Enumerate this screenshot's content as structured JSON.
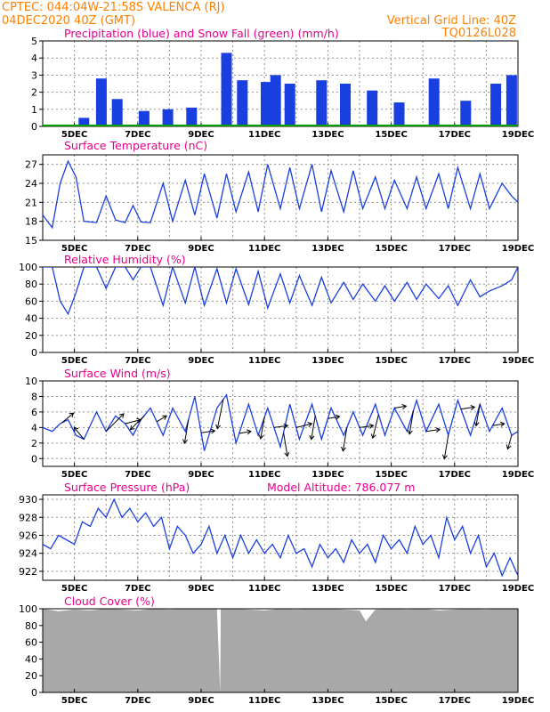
{
  "header": {
    "line1": "CPTEC:   044:04W-21:58S   VALENCA (RJ)",
    "line2": "04DEC2020  40Z  (GMT)",
    "grid_note": "Vertical Grid Line: 40Z",
    "code": "TQ0126L028"
  },
  "colors": {
    "header": "#ff8000",
    "title": "#e8008a",
    "line": "#1a3fe0",
    "precip": "#1a3fe0",
    "snow": "#00a000",
    "cloud": "#a8a8a8",
    "grid": "#909090"
  },
  "chart_data": [
    {
      "type": "bar",
      "title": "Precipitation (blue) and Snow Fall (green) (mm/h)",
      "x_labels": [
        "5DEC",
        "7DEC",
        "9DEC",
        "11DEC",
        "13DEC",
        "15DEC",
        "17DEC",
        "19DEC"
      ],
      "x_range_days": [
        4.0,
        19.0
      ],
      "ylim": [
        0,
        5
      ],
      "yticks": [
        0,
        1,
        2,
        3,
        4,
        5
      ],
      "grid": true,
      "series": [
        {
          "name": "Precipitation",
          "x": [
            5.3,
            5.85,
            6.35,
            7.2,
            7.95,
            8.7,
            9.8,
            10.3,
            11.05,
            11.35,
            11.8,
            12.8,
            13.55,
            14.4,
            15.25,
            16.35,
            17.35,
            18.3,
            18.8
          ],
          "values": [
            0.5,
            2.8,
            1.6,
            0.9,
            1.0,
            1.1,
            4.3,
            2.7,
            2.6,
            3.0,
            2.5,
            2.7,
            2.5,
            2.1,
            1.4,
            2.8,
            1.5,
            2.5,
            3.0
          ]
        },
        {
          "name": "Snow Fall",
          "x": [
            4.0,
            19.0
          ],
          "values": [
            0,
            0
          ]
        }
      ]
    },
    {
      "type": "line",
      "title": "Surface Temperature (nC)",
      "x_labels": [
        "5DEC",
        "7DEC",
        "9DEC",
        "11DEC",
        "13DEC",
        "15DEC",
        "17DEC",
        "19DEC"
      ],
      "x_range_days": [
        4.0,
        19.0
      ],
      "ylim": [
        15,
        28.5
      ],
      "yticks": [
        15,
        18,
        21,
        24,
        27
      ],
      "grid": true,
      "series": [
        {
          "name": "",
          "x": [
            4.0,
            4.3,
            4.55,
            4.8,
            5.05,
            5.3,
            5.7,
            6.0,
            6.3,
            6.6,
            6.85,
            7.1,
            7.4,
            7.8,
            8.1,
            8.5,
            8.8,
            9.1,
            9.5,
            9.8,
            10.1,
            10.5,
            10.8,
            11.1,
            11.5,
            11.8,
            12.1,
            12.5,
            12.8,
            13.1,
            13.5,
            13.8,
            14.1,
            14.5,
            14.8,
            15.1,
            15.5,
            15.8,
            16.1,
            16.5,
            16.8,
            17.1,
            17.5,
            17.8,
            18.1,
            18.5,
            18.8,
            19.0
          ],
          "values": [
            19,
            17,
            24,
            27.5,
            25,
            18,
            17.8,
            22,
            18.2,
            17.8,
            20.5,
            17.9,
            17.8,
            24,
            18,
            24.5,
            19,
            25.5,
            18.5,
            25.5,
            19.5,
            25.8,
            19.5,
            27,
            20,
            26.5,
            20,
            27,
            19.5,
            26,
            19.5,
            26,
            20,
            25,
            20,
            24.5,
            20,
            25,
            20,
            25.5,
            20,
            26.5,
            20,
            25.5,
            20,
            24,
            22,
            21
          ]
        }
      ]
    },
    {
      "type": "line",
      "title": "Relative Humidity (%)",
      "x_labels": [
        "5DEC",
        "7DEC",
        "9DEC",
        "11DEC",
        "13DEC",
        "15DEC",
        "17DEC",
        "19DEC"
      ],
      "x_range_days": [
        4.0,
        19.0
      ],
      "ylim": [
        0,
        100
      ],
      "yticks": [
        0,
        20,
        40,
        60,
        80,
        100
      ],
      "grid": true,
      "series": [
        {
          "name": "",
          "x": [
            4.0,
            4.3,
            4.55,
            4.8,
            5.05,
            5.3,
            5.7,
            6.0,
            6.3,
            6.6,
            6.85,
            7.1,
            7.4,
            7.8,
            8.1,
            8.5,
            8.8,
            9.1,
            9.5,
            9.8,
            10.1,
            10.5,
            10.8,
            11.1,
            11.5,
            11.8,
            12.1,
            12.5,
            12.8,
            13.1,
            13.5,
            13.8,
            14.1,
            14.5,
            14.8,
            15.1,
            15.5,
            15.8,
            16.1,
            16.5,
            16.8,
            17.1,
            17.5,
            17.8,
            18.1,
            18.5,
            18.8,
            19.0
          ],
          "values": [
            100,
            100,
            60,
            45,
            70,
            100,
            100,
            75,
            100,
            100,
            85,
            100,
            100,
            55,
            100,
            58,
            100,
            55,
            98,
            58,
            98,
            56,
            95,
            52,
            92,
            58,
            90,
            55,
            88,
            58,
            82,
            62,
            80,
            60,
            78,
            60,
            82,
            62,
            80,
            63,
            78,
            55,
            85,
            65,
            72,
            78,
            85,
            100
          ]
        }
      ]
    },
    {
      "type": "line",
      "title": "Surface Wind (m/s)",
      "x_labels": [
        "5DEC",
        "7DEC",
        "9DEC",
        "11DEC",
        "13DEC",
        "15DEC",
        "17DEC",
        "19DEC"
      ],
      "x_range_days": [
        4.0,
        19.0
      ],
      "ylim": [
        -1,
        10
      ],
      "yticks": [
        0,
        2,
        4,
        6,
        8,
        10
      ],
      "grid": true,
      "series": [
        {
          "name": "",
          "x": [
            4.0,
            4.3,
            4.55,
            4.8,
            5.05,
            5.3,
            5.7,
            6.0,
            6.3,
            6.6,
            6.85,
            7.1,
            7.4,
            7.8,
            8.1,
            8.5,
            8.8,
            9.1,
            9.5,
            9.8,
            10.1,
            10.5,
            10.8,
            11.1,
            11.5,
            11.8,
            12.1,
            12.5,
            12.8,
            13.1,
            13.5,
            13.8,
            14.1,
            14.5,
            14.8,
            15.1,
            15.5,
            15.8,
            16.1,
            16.5,
            16.8,
            17.1,
            17.5,
            17.8,
            18.1,
            18.5,
            18.8,
            19.0
          ],
          "values": [
            4,
            3.5,
            4.5,
            5,
            3,
            2.5,
            6,
            3.5,
            5.5,
            4.5,
            3,
            5,
            6.5,
            3,
            6.5,
            3.5,
            8,
            1,
            6.5,
            8.2,
            2,
            7,
            3,
            6.5,
            1.5,
            7,
            2.5,
            7,
            2.5,
            6.5,
            3,
            6,
            3,
            7,
            3,
            6.5,
            3.5,
            7.5,
            3.5,
            7,
            3,
            7.5,
            3,
            7,
            3.5,
            6.5,
            3,
            3.5
          ]
        }
      ],
      "wind_barbs": [
        {
          "x": 4.6,
          "u": 0.6,
          "v": 0.5
        },
        {
          "x": 5.3,
          "u": -0.5,
          "v": 0.6
        },
        {
          "x": 6.0,
          "u": 0.9,
          "v": 0.9
        },
        {
          "x": 6.6,
          "u": 0.8,
          "v": 0.2
        },
        {
          "x": 7.2,
          "u": -0.7,
          "v": -0.7
        },
        {
          "x": 7.6,
          "u": 0.5,
          "v": 0.3
        },
        {
          "x": 8.6,
          "u": -0.2,
          "v": -1.2
        },
        {
          "x": 9.0,
          "u": 0.7,
          "v": 0.1
        },
        {
          "x": 9.7,
          "u": -0.3,
          "v": -1.5
        },
        {
          "x": 10.2,
          "u": 0.6,
          "v": 0.1
        },
        {
          "x": 11.0,
          "u": -0.2,
          "v": -1.1
        },
        {
          "x": 11.3,
          "u": 0.7,
          "v": 0.1
        },
        {
          "x": 11.6,
          "u": 0.2,
          "v": -1.2
        },
        {
          "x": 12.0,
          "u": 0.8,
          "v": 0.2
        },
        {
          "x": 12.6,
          "u": -0.2,
          "v": -1.2
        },
        {
          "x": 13.0,
          "u": 0.6,
          "v": 0.1
        },
        {
          "x": 13.6,
          "u": -0.2,
          "v": -1.2
        },
        {
          "x": 14.0,
          "u": 0.7,
          "v": 0.1
        },
        {
          "x": 14.6,
          "u": -0.3,
          "v": -1.2
        },
        {
          "x": 15.1,
          "u": 0.6,
          "v": 0.1
        },
        {
          "x": 15.7,
          "u": -0.2,
          "v": -1.2
        },
        {
          "x": 16.1,
          "u": 0.7,
          "v": 0.1
        },
        {
          "x": 16.8,
          "u": -0.2,
          "v": -1.2
        },
        {
          "x": 17.2,
          "u": 0.7,
          "v": 0.1
        },
        {
          "x": 17.8,
          "u": -0.2,
          "v": -1.1
        },
        {
          "x": 18.2,
          "u": 0.6,
          "v": 0.1
        },
        {
          "x": 18.8,
          "u": -0.2,
          "v": -0.7
        }
      ]
    },
    {
      "type": "line",
      "title": "Surface Pressure (hPa)",
      "title_extra": "Model Altitude: 786.077  m",
      "x_labels": [
        "5DEC",
        "7DEC",
        "9DEC",
        "11DEC",
        "13DEC",
        "15DEC",
        "17DEC",
        "19DEC"
      ],
      "x_range_days": [
        4.0,
        19.0
      ],
      "ylim": [
        921,
        930.5
      ],
      "yticks": [
        922,
        924,
        926,
        928,
        930
      ],
      "grid": true,
      "series": [
        {
          "name": "",
          "x": [
            4.0,
            4.25,
            4.5,
            4.75,
            5.0,
            5.25,
            5.5,
            5.75,
            6.0,
            6.25,
            6.5,
            6.75,
            7.0,
            7.25,
            7.5,
            7.75,
            8.0,
            8.25,
            8.5,
            8.75,
            9.0,
            9.25,
            9.5,
            9.75,
            10.0,
            10.25,
            10.5,
            10.75,
            11.0,
            11.25,
            11.5,
            11.75,
            12.0,
            12.25,
            12.5,
            12.75,
            13.0,
            13.25,
            13.5,
            13.75,
            14.0,
            14.25,
            14.5,
            14.75,
            15.0,
            15.25,
            15.5,
            15.75,
            16.0,
            16.25,
            16.5,
            16.75,
            17.0,
            17.25,
            17.5,
            17.75,
            18.0,
            18.25,
            18.5,
            18.75,
            19.0
          ],
          "values": [
            925,
            924.5,
            926,
            925.5,
            925,
            927.5,
            927,
            929,
            928,
            930,
            928,
            929,
            927.5,
            928.5,
            927,
            928,
            924.5,
            927,
            926,
            924,
            925,
            927,
            924,
            926,
            923.5,
            926,
            924,
            925.5,
            924,
            925,
            923.5,
            926,
            924,
            924.5,
            922.5,
            925,
            923.5,
            924.5,
            923,
            925.5,
            924,
            925,
            923,
            926,
            924.5,
            925.5,
            924,
            927,
            925,
            926,
            923.5,
            928,
            925.5,
            927,
            924,
            926,
            922.5,
            924,
            921.5,
            923.5,
            921.5
          ]
        }
      ]
    },
    {
      "type": "area",
      "title": "Cloud Cover (%)",
      "x_labels": [
        "5DEC",
        "7DEC",
        "9DEC",
        "11DEC",
        "13DEC",
        "15DEC",
        "17DEC",
        "19DEC"
      ],
      "x_range_days": [
        4.0,
        19.0
      ],
      "ylim": [
        0,
        100
      ],
      "yticks": [
        0,
        20,
        40,
        60,
        80,
        100
      ],
      "grid": false,
      "series": [
        {
          "name": "",
          "x": [
            4.0,
            4.5,
            5.0,
            5.5,
            6.0,
            6.5,
            7.0,
            7.5,
            8.0,
            8.5,
            9.0,
            9.5,
            9.6,
            9.62,
            10.0,
            10.5,
            11.0,
            11.5,
            12.0,
            12.5,
            13.0,
            13.5,
            14.0,
            14.2,
            14.5,
            15.0,
            15.5,
            16.0,
            16.5,
            17.0,
            17.5,
            18.0,
            18.5,
            19.0
          ],
          "values": [
            100,
            97,
            99,
            98,
            100,
            99,
            98,
            100,
            99,
            100,
            100,
            100,
            0,
            100,
            100,
            99,
            98,
            100,
            99,
            100,
            100,
            99,
            98,
            85,
            99,
            100,
            99,
            100,
            98,
            99,
            100,
            99,
            100,
            100
          ]
        }
      ]
    }
  ]
}
